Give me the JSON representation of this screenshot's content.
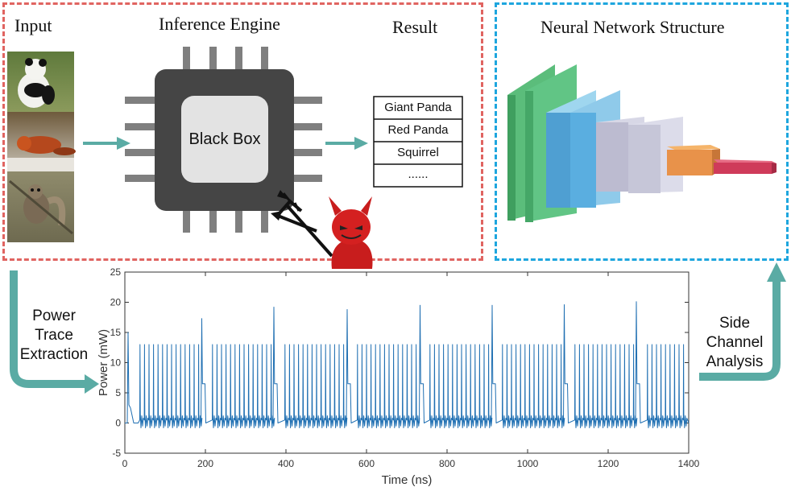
{
  "titles": {
    "input": "Input",
    "engine": "Inference Engine",
    "result": "Result",
    "nn": "Neural Network Structure"
  },
  "chip": {
    "label": "Black Box"
  },
  "results": [
    "Giant Panda",
    "Red Panda",
    "Squirrel",
    "......"
  ],
  "labels": {
    "power_trace": [
      "Power",
      "Trace",
      "Extraction"
    ],
    "side_channel": [
      "Side",
      "Channel",
      "Analysis"
    ]
  },
  "colors": {
    "input_box": "#e06461",
    "nn_box": "#1ea6de",
    "arrow": "#5aaba4",
    "trace": "#1f6fb2",
    "devil": "#d21f1f"
  },
  "chart_data": {
    "type": "line",
    "xlabel": "Time (ns)",
    "ylabel": "Power (mW)",
    "xlim": [
      0,
      1400
    ],
    "ylim": [
      -5,
      25
    ],
    "xticks": [
      0,
      200,
      400,
      600,
      800,
      1000,
      1200,
      1400
    ],
    "yticks": [
      -5,
      0,
      5,
      10,
      15,
      20,
      25
    ],
    "period_ns": 180,
    "segment_start_ns": 33,
    "spikes_per_segment": 14,
    "spike_height_mw": 13,
    "peak_spikes": [
      {
        "x": 191,
        "y": 17.3
      },
      {
        "x": 370,
        "y": 19.2
      },
      {
        "x": 552,
        "y": 18.8
      },
      {
        "x": 733,
        "y": 19.5
      },
      {
        "x": 912,
        "y": 19.5
      },
      {
        "x": 1091,
        "y": 19.6
      },
      {
        "x": 1270,
        "y": 20.1
      }
    ],
    "initial_spike": {
      "x": 8,
      "y": 15
    }
  }
}
